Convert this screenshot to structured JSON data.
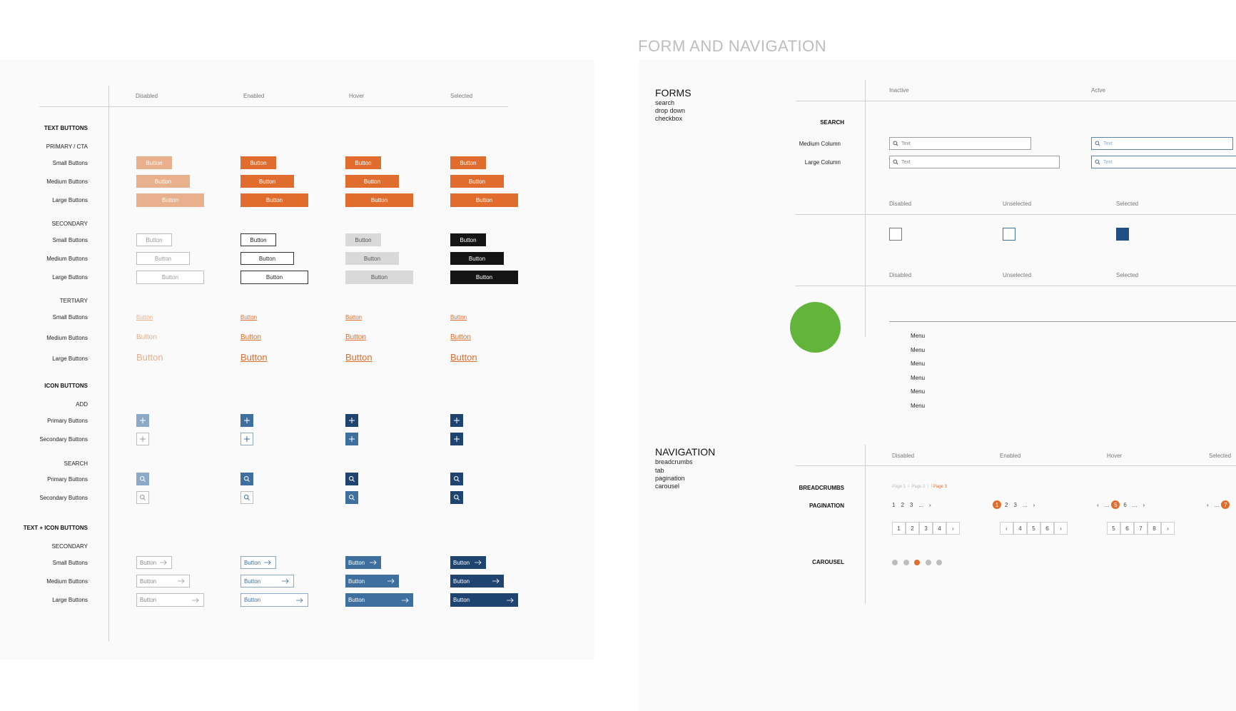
{
  "title": "FORM AND NAVIGATION",
  "colors": {
    "orange": "#e06d2e",
    "orange_disabled": "#e9b08d",
    "blue_enabled": "#3f6f9e",
    "blue_dark": "#1f4470",
    "blue_disabled": "#8da9c8",
    "green": "#62b43a",
    "black": "#141414"
  },
  "buttons_panel": {
    "columns": [
      "Disabled",
      "Enabled",
      "Hover",
      "Selected"
    ],
    "text_buttons": "TEXT BUTTONS",
    "primary_cta": "PRIMARY / CTA",
    "secondary": "SECONDARY",
    "tertiary": "TERTIARY",
    "small": "Small Buttons",
    "medium": "Medium Buttons",
    "large": "Large Buttons",
    "button_label": "Button",
    "icon_buttons": "ICON BUTTONS",
    "add": "ADD",
    "search": "SEARCH",
    "primary_buttons": "Primary Buttons",
    "secondary_buttons": "Secondary Buttons",
    "text_icon_buttons": "TEXT + ICON BUTTONS",
    "secondary2": "SECONDARY"
  },
  "forms": {
    "heading": "FORMS",
    "items": [
      "search",
      "drop down",
      "checkbox"
    ],
    "search_cols": [
      "Inactive",
      "Actve"
    ],
    "search_label": "SEARCH",
    "medium_column": "Medium Column",
    "large_column": "Large Column",
    "placeholder": "Text",
    "checkbox_cols": [
      "Disabled",
      "Unselected",
      "Selected"
    ],
    "dropdown_cols": [
      "Disabled",
      "Unselected",
      "Selected"
    ],
    "menu_items": [
      "Menu",
      "Menu",
      "Menu",
      "Menu",
      "Menu",
      "Menu"
    ]
  },
  "navigation": {
    "heading": "NAVIGATION",
    "items": [
      "breadcrumbs",
      "tab",
      "pagination",
      "carousel"
    ],
    "cols": [
      "Disabled",
      "Enabled",
      "Hover",
      "Selected"
    ],
    "breadcrumbs_label": "BREADCRUMBS",
    "breadcrumb": "Page 1  /  Page 2  /  Page 3",
    "pagination_label": "PAGINATION",
    "carousel_label": "CAROUSEL",
    "pg1": [
      "1",
      "2",
      "3",
      "...",
      "›"
    ],
    "pg2_current": "1",
    "pg2": [
      "2",
      "3",
      "...",
      "›"
    ],
    "pg3_pre": [
      "‹",
      "..."
    ],
    "pg3_current": "5",
    "pg3_post": [
      "6",
      "...",
      "›"
    ],
    "pg4_pre": [
      "‹",
      "..."
    ],
    "pg4_current": "7",
    "boxes1": [
      "1",
      "2",
      "3",
      "4",
      "›"
    ],
    "boxes2": [
      "‹",
      "4",
      "5",
      "6",
      "›"
    ],
    "boxes3": [
      "5",
      "6",
      "7",
      "8",
      "›"
    ]
  }
}
